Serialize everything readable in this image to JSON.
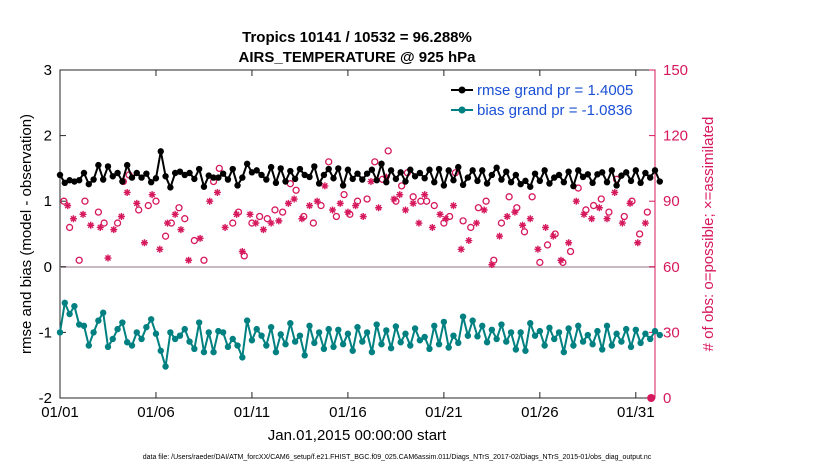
{
  "chart_data": {
    "type": "line",
    "title": "Tropics 10141 / 10532 = 96.288%",
    "subtitle": "AIRS_TEMPERATURE @ 925 hPa",
    "xlabel": "Jan.01,2015 00:00:00 start",
    "ylabel": "rmse and bias (model - observation)",
    "y2label": "# of obs: o=possible; ×=assimilated",
    "xlim": [
      1,
      32
    ],
    "ylim": [
      -2,
      3
    ],
    "y2lim": [
      0,
      150
    ],
    "xticks": [
      1,
      6,
      11,
      16,
      21,
      26,
      31
    ],
    "xtick_labels": [
      "01/01",
      "01/06",
      "01/11",
      "01/16",
      "01/21",
      "01/26",
      "01/31"
    ],
    "yticks": [
      -2,
      -1,
      0,
      1,
      2,
      3
    ],
    "ytick_labels": [
      "-2",
      "-1",
      "0",
      "1",
      "2",
      "3"
    ],
    "y2ticks": [
      0,
      30,
      60,
      90,
      120,
      150
    ],
    "y2tick_labels": [
      "0",
      "30",
      "60",
      "90",
      "120",
      "150"
    ],
    "footer": "data file: /Users/raeder/DAI/ATM_forcXX/CAM6_setup/f.e21.FHIST_BGC.f09_025.CAM6assim.011/Diags_NTrS_2017-02/Diags_NTrS_2015-01/obs_diag_output.nc",
    "legend": [
      {
        "name": "rmse grand pr = 1.4005",
        "color": "#000000"
      },
      {
        "name": "bias grand pr = -1.0836",
        "color": "#008080"
      }
    ],
    "colors": {
      "rmse": "#000000",
      "bias": "#008080",
      "obs": "#d6185d",
      "zero": "#c8b9c2"
    },
    "time_start": 1,
    "time_step": 0.25,
    "series": [
      {
        "name": "rmse",
        "values": [
          1.4,
          1.28,
          1.32,
          1.3,
          1.32,
          1.43,
          1.26,
          1.33,
          1.55,
          1.33,
          1.53,
          1.38,
          1.43,
          1.3,
          1.55,
          1.36,
          1.43,
          1.36,
          1.42,
          1.29,
          1.35,
          1.76,
          1.38,
          1.21,
          1.43,
          1.45,
          1.4,
          1.43,
          1.34,
          1.49,
          1.22,
          1.39,
          1.36,
          1.36,
          1.42,
          1.33,
          1.49,
          1.24,
          1.36,
          1.57,
          1.44,
          1.47,
          1.4,
          1.33,
          1.52,
          1.28,
          1.5,
          1.3,
          1.46,
          1.34,
          1.49,
          1.4,
          1.37,
          1.53,
          1.27,
          1.4,
          1.49,
          1.35,
          1.5,
          1.24,
          1.48,
          1.34,
          1.42,
          1.33,
          1.42,
          1.48,
          1.32,
          1.57,
          1.29,
          1.47,
          1.34,
          1.44,
          1.3,
          1.48,
          1.38,
          1.43,
          1.35,
          1.48,
          1.29,
          1.49,
          1.24,
          1.47,
          1.32,
          1.52,
          1.25,
          1.36,
          1.47,
          1.31,
          1.47,
          1.27,
          1.4,
          1.51,
          1.33,
          1.45,
          1.29,
          1.4,
          1.26,
          1.31,
          1.22,
          1.42,
          1.31,
          1.47,
          1.27,
          1.36,
          1.4,
          1.29,
          1.45,
          1.23,
          1.47,
          1.37,
          1.41,
          1.28,
          1.41,
          1.44,
          1.29,
          1.47,
          1.24,
          1.39,
          1.44,
          1.31,
          1.47,
          1.28,
          1.43,
          1.36,
          1.47,
          1.3
        ]
      },
      {
        "name": "bias",
        "values": [
          -1.0,
          -0.55,
          -0.72,
          -0.6,
          -0.88,
          -0.9,
          -1.2,
          -1.0,
          -0.82,
          -0.7,
          -1.22,
          -1.1,
          -0.95,
          -0.85,
          -1.15,
          -1.2,
          -1.0,
          -1.1,
          -0.92,
          -0.8,
          -1.02,
          -1.28,
          -1.52,
          -1.0,
          -1.1,
          -1.05,
          -0.95,
          -1.14,
          -1.25,
          -0.85,
          -1.3,
          -1.0,
          -1.3,
          -0.98,
          -1.0,
          -1.22,
          -1.1,
          -1.2,
          -1.38,
          -0.82,
          -1.12,
          -0.95,
          -1.05,
          -1.2,
          -0.92,
          -1.3,
          -1.03,
          -1.18,
          -0.86,
          -1.14,
          -1.05,
          -1.35,
          -0.9,
          -1.16,
          -1.0,
          -1.25,
          -0.95,
          -1.22,
          -0.96,
          -1.18,
          -1.02,
          -1.28,
          -0.92,
          -1.14,
          -1.0,
          -1.3,
          -0.88,
          -1.18,
          -0.97,
          -1.24,
          -0.91,
          -1.15,
          -1.02,
          -1.2,
          -0.94,
          -1.12,
          -1.07,
          -1.25,
          -0.9,
          -1.18,
          -0.84,
          -1.23,
          -1.05,
          -1.16,
          -0.76,
          -1.05,
          -0.82,
          -1.06,
          -0.9,
          -1.15,
          -0.96,
          -1.1,
          -0.88,
          -1.14,
          -1.0,
          -1.26,
          -1.0,
          -1.28,
          -0.86,
          -1.05,
          -0.98,
          -1.2,
          -0.93,
          -1.1,
          -1.0,
          -1.3,
          -0.94,
          -1.2,
          -0.9,
          -1.14,
          -1.04,
          -1.18,
          -0.98,
          -1.26,
          -0.9,
          -1.2,
          -1.02,
          -1.14,
          -0.95,
          -1.22,
          -0.96,
          -1.16,
          -1.02,
          -1.1,
          -0.98,
          -1.04
        ]
      }
    ],
    "obs_possible": {
      "x": [
        1.2,
        1.5,
        2.0,
        2.3,
        3.0,
        3.3,
        4.0,
        4.3,
        4.6,
        5.1,
        5.6,
        6.0,
        6.5,
        6.8,
        7.2,
        7.5,
        8.0,
        8.5,
        9.0,
        9.3,
        10.0,
        10.3,
        10.6,
        11.0,
        11.4,
        11.8,
        12.2,
        12.6,
        13.0,
        13.3,
        13.7,
        14.2,
        14.6,
        15.0,
        15.4,
        15.8,
        16.1,
        16.5,
        17.0,
        17.4,
        17.8,
        18.1,
        18.5,
        18.8,
        19.1,
        19.4,
        19.8,
        20.1,
        20.5,
        21.0,
        21.3,
        21.6,
        22.0,
        22.4,
        22.8,
        23.2,
        23.6,
        24.0,
        24.4,
        24.8,
        25.2,
        25.6,
        26.0,
        26.4,
        26.8,
        27.2,
        27.6,
        28.0,
        28.4,
        28.8,
        29.2,
        29.6,
        30.0,
        30.4,
        30.8,
        31.2,
        31.6
      ],
      "values": [
        90,
        78,
        63,
        90,
        85,
        80,
        80,
        99,
        102,
        86,
        88,
        90,
        74,
        80,
        87,
        82,
        72,
        63,
        99,
        105,
        80,
        85,
        65,
        80,
        83,
        82,
        86,
        85,
        98,
        95,
        83,
        80,
        88,
        108,
        83,
        93,
        84,
        90,
        91,
        108,
        100,
        113,
        90,
        97,
        103,
        92,
        90,
        90,
        88,
        80,
        83,
        103,
        81,
        78,
        87,
        90,
        63,
        80,
        92,
        87,
        76,
        92,
        62,
        70,
        75,
        62,
        67,
        96,
        86,
        88,
        91,
        85,
        100,
        83,
        90,
        75,
        85
      ]
    },
    "obs_assimilated": {
      "x": [
        1.4,
        1.7,
        2.2,
        2.6,
        3.1,
        3.5,
        3.8,
        4.2,
        4.5,
        5.0,
        5.4,
        5.8,
        6.2,
        6.6,
        7.0,
        7.3,
        7.7,
        8.3,
        8.8,
        9.2,
        9.6,
        10.2,
        10.5,
        10.9,
        11.2,
        11.6,
        12.0,
        12.4,
        12.9,
        13.2,
        13.6,
        14.0,
        14.4,
        14.8,
        15.2,
        15.6,
        16.0,
        16.4,
        16.8,
        17.2,
        17.6,
        18.0,
        18.4,
        18.7,
        19.0,
        19.4,
        19.7,
        20.0,
        20.4,
        20.8,
        21.1,
        21.5,
        21.9,
        22.3,
        22.7,
        23.1,
        23.5,
        23.9,
        24.3,
        24.7,
        25.1,
        25.5,
        25.9,
        26.3,
        26.7,
        27.1,
        27.5,
        27.9,
        28.3,
        28.7,
        29.1,
        29.5,
        29.9,
        30.3,
        30.7,
        31.1,
        31.5
      ],
      "values": [
        88,
        82,
        84,
        79,
        78,
        64,
        77,
        83,
        94,
        89,
        71,
        93,
        68,
        80,
        84,
        77,
        63,
        73,
        90,
        94,
        78,
        84,
        67,
        84,
        80,
        77,
        80,
        81,
        89,
        91,
        82,
        88,
        90,
        97,
        86,
        89,
        85,
        88,
        83,
        99,
        87,
        101,
        91,
        93,
        86,
        89,
        80,
        93,
        78,
        84,
        82,
        88,
        68,
        72,
        80,
        86,
        61,
        74,
        83,
        85,
        79,
        82,
        68,
        78,
        74,
        63,
        71,
        90,
        84,
        82,
        87,
        82,
        94,
        80,
        89,
        71,
        80
      ]
    },
    "obs_zero_marker": {
      "x": 31.8,
      "value": 0
    }
  }
}
